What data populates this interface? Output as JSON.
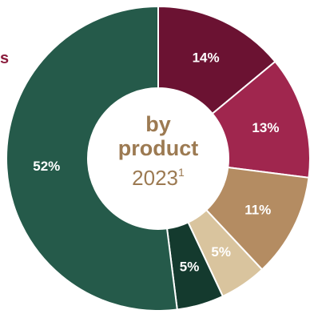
{
  "edge_text": "s",
  "chart_data": {
    "type": "pie",
    "donut": true,
    "center_title": [
      "by",
      "product"
    ],
    "center_year": "2023",
    "center_footnote": "1",
    "slices": [
      {
        "value": 14,
        "label": "14%",
        "color": "#6b1232",
        "text_color": "#ffffff"
      },
      {
        "value": 13,
        "label": "13%",
        "color": "#a0264e",
        "text_color": "#ffffff"
      },
      {
        "value": 11,
        "label": "11%",
        "color": "#b48c62",
        "text_color": "#ffffff"
      },
      {
        "value": 5,
        "label": "5%",
        "color": "#d9c49e",
        "text_color": "#ffffff"
      },
      {
        "value": 5,
        "label": "5%",
        "color": "#143a2e",
        "text_color": "#ffffff"
      },
      {
        "value": 52,
        "label": "52%",
        "color": "#255a4a",
        "text_color": "#ffffff"
      }
    ]
  }
}
